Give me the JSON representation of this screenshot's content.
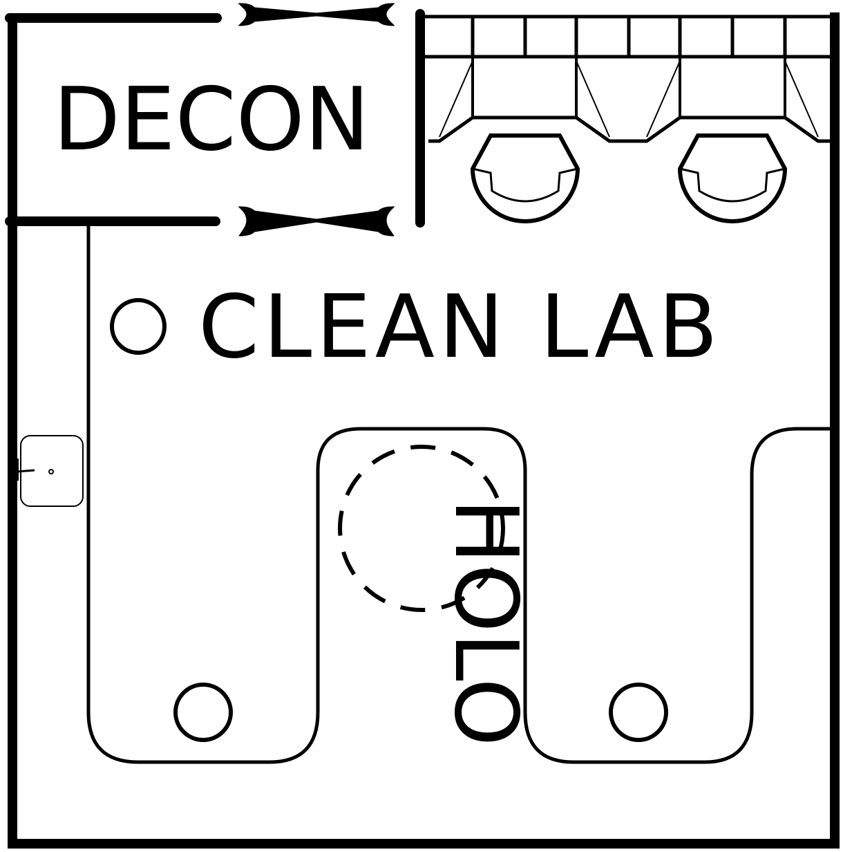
{
  "labels": {
    "decon": "DECON",
    "clean_lab": "CLEAN LAB",
    "holo": "HOLO"
  },
  "colors": {
    "line": "#000000",
    "background": "#ffffff"
  }
}
